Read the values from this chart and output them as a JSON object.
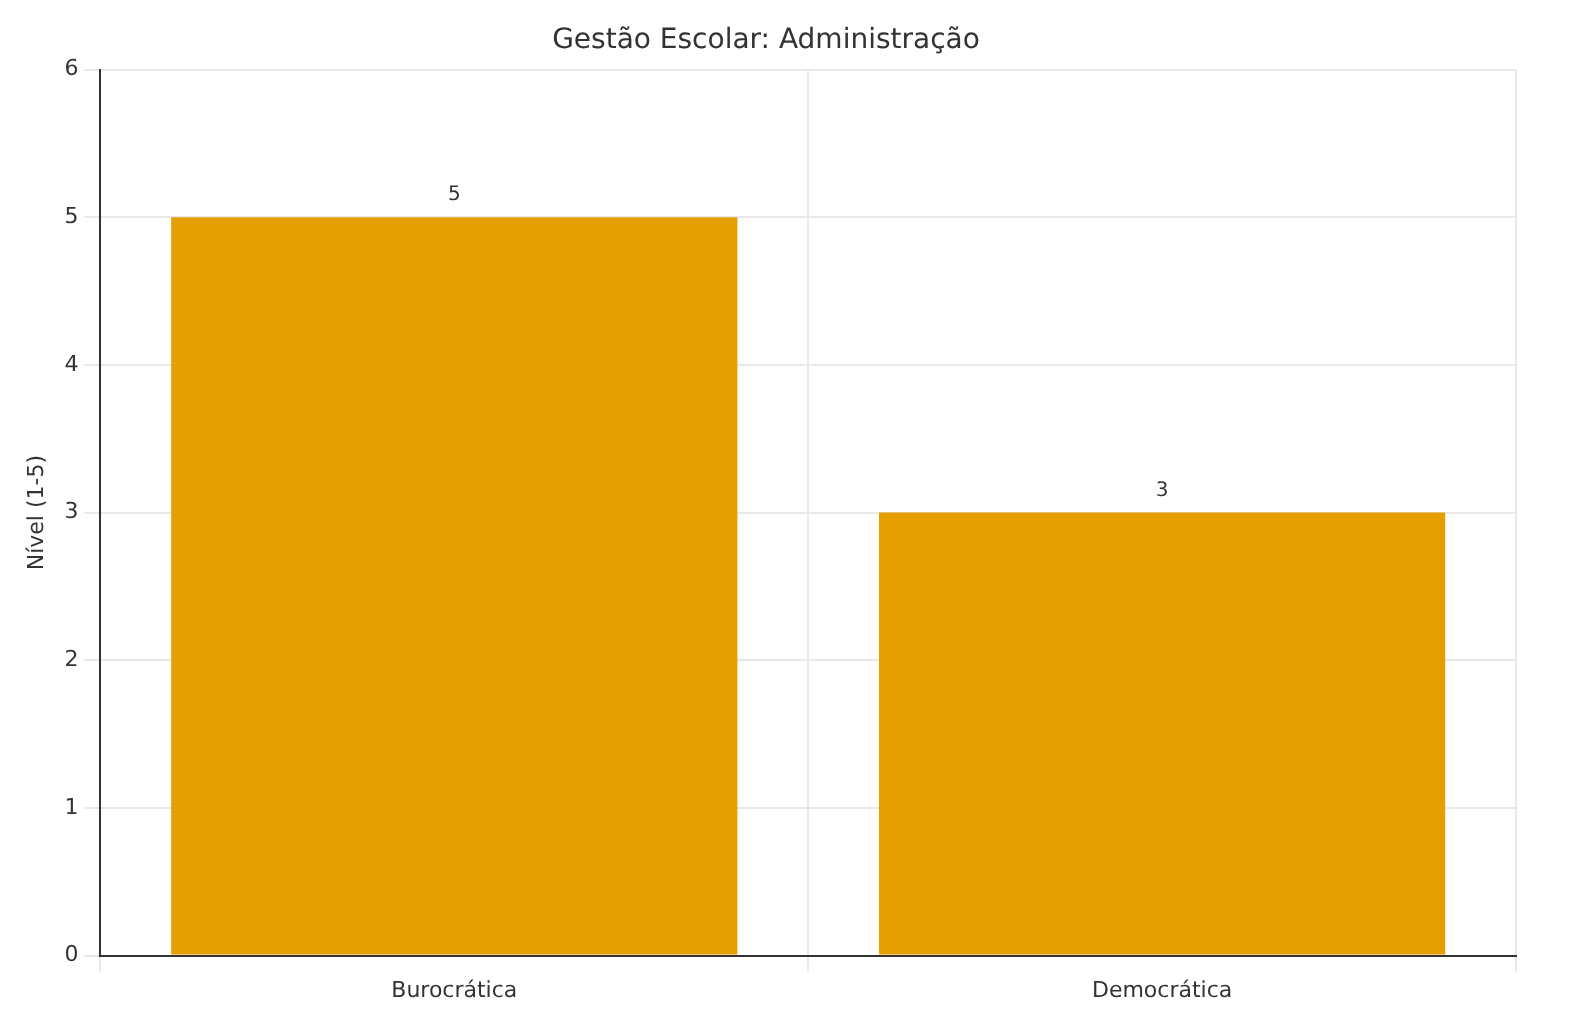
{
  "chart_data": {
    "type": "bar",
    "title": "Gestão Escolar: Administração",
    "ylabel": "Nível (1-5)",
    "categories": [
      "Burocrática",
      "Democrática"
    ],
    "values": [
      5,
      3
    ],
    "color": "#e69f00",
    "ylim": [
      0,
      6
    ],
    "yticks": [
      0,
      1,
      2,
      3,
      4,
      5,
      6
    ],
    "grid": true,
    "data_labels": true
  }
}
